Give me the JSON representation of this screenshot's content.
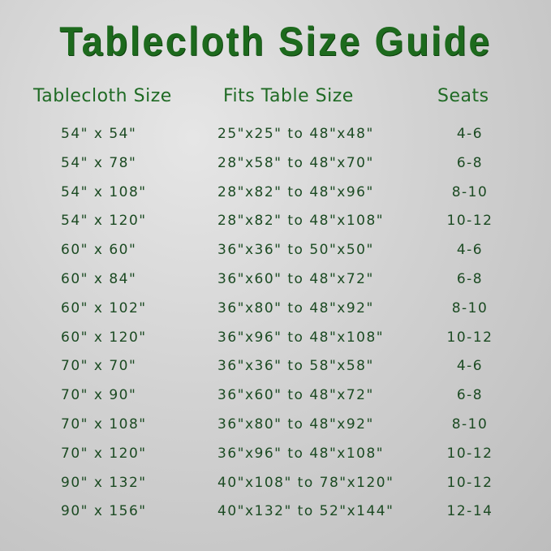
{
  "title": "Tablecloth Size Guide",
  "headers": [
    "Tablecloth Size",
    "Fits Table Size",
    "Seats"
  ],
  "rows": [
    [
      "54\" x 54\"",
      "25\"x25\" to 48\"x48\"",
      "4-6"
    ],
    [
      "54\" x 78\"",
      "28\"x58\" to 48\"x70\"",
      "6-8"
    ],
    [
      "54\" x 108\"",
      "28\"x82\" to 48\"x96\"",
      "8-10"
    ],
    [
      "54\" x 120\"",
      "28\"x82\" to 48\"x108\"",
      "10-12"
    ],
    [
      "60\" x 60\"",
      "36\"x36\" to 50\"x50\"",
      "4-6"
    ],
    [
      "60\" x 84\"",
      "36\"x60\" to 48\"x72\"",
      "6-8"
    ],
    [
      "60\" x 102\"",
      "36\"x80\" to 48\"x92\"",
      "8-10"
    ],
    [
      "60\" x 120\"",
      "36\"x96\" to 48\"x108\"",
      "10-12"
    ],
    [
      "70\" x 70\"",
      "36\"x36\" to 58\"x58\"",
      "4-6"
    ],
    [
      "70\" x 90\"",
      "36\"x60\" to 48\"x72\"",
      "6-8"
    ],
    [
      "70\" x 108\"",
      "36\"x80\" to 48\"x92\"",
      "8-10"
    ],
    [
      "70\" x 120\"",
      "36\"x96\" to 48\"x108\"",
      "10-12"
    ],
    [
      "90\" x 132\"",
      "40\"x108\" to 78\"x120\"",
      "10-12"
    ],
    [
      "90\" x 156\"",
      "40\"x132\" to 52\"x144\"",
      "12-14"
    ]
  ],
  "colors": {
    "title": "#1d6a1d",
    "header": "#1f6a24",
    "text": "#1b4a22",
    "background": "#d2d2d2"
  }
}
